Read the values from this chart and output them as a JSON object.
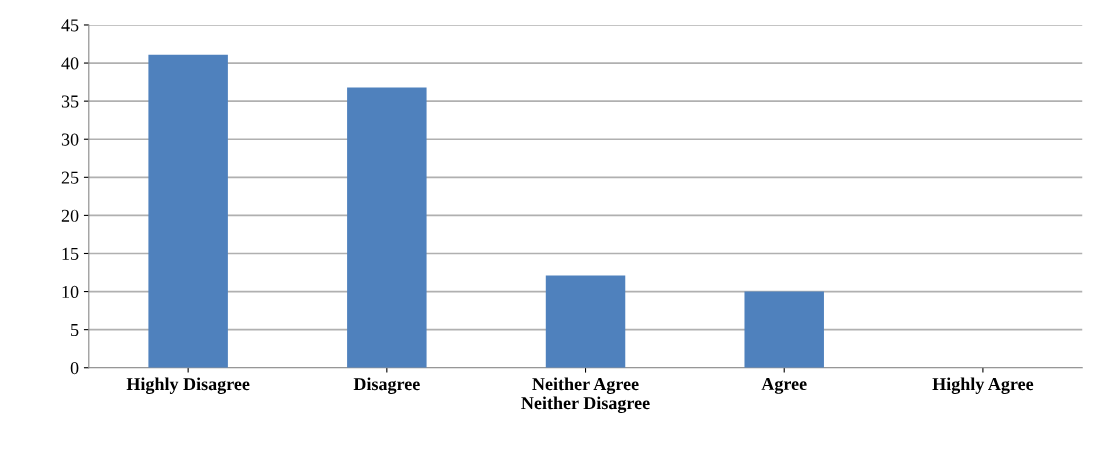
{
  "chart_data": {
    "type": "bar",
    "categories": [
      "Highly Disagree",
      "Disagree",
      "Neither Agree\nNeither Disagree",
      "Agree",
      "Highly Agree"
    ],
    "values": [
      41.1,
      36.8,
      12.1,
      10.0,
      0
    ],
    "color": "#4f81bd",
    "ylim": [
      0,
      45
    ],
    "yticks": [
      0,
      5,
      10,
      15,
      20,
      25,
      30,
      35,
      40,
      45
    ],
    "grid": "y",
    "legend": false
  }
}
